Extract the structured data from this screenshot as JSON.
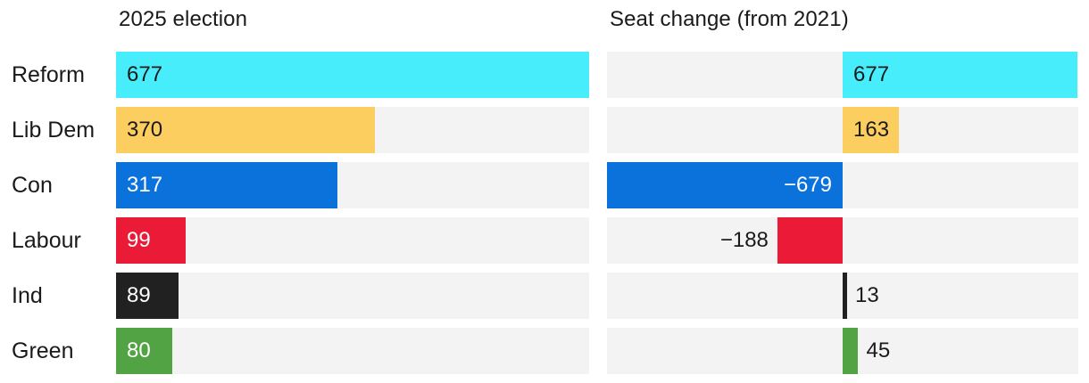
{
  "header": {
    "left_title": "2025 election",
    "right_title": "Seat change (from 2021)"
  },
  "axes": {
    "left_max": 677,
    "right_max": 679
  },
  "track_color": "#F3F3F3",
  "label_color": "#1A1A1A",
  "rows": [
    {
      "party": "Reform",
      "seats": 677,
      "seats_label": "677",
      "change": 677,
      "change_label": "677",
      "color": "#47EDFA",
      "value_text_color": "#1A1A1A",
      "change_label_inside": true
    },
    {
      "party": "Lib Dem",
      "seats": 370,
      "seats_label": "370",
      "change": 163,
      "change_label": "163",
      "color": "#FCCE5F",
      "value_text_color": "#1A1A1A",
      "change_label_inside": true
    },
    {
      "party": "Con",
      "seats": 317,
      "seats_label": "317",
      "change": -679,
      "change_label": "−679",
      "color": "#0B72DB",
      "value_text_color": "#FFFFFF",
      "change_label_inside": true
    },
    {
      "party": "Labour",
      "seats": 99,
      "seats_label": "99",
      "change": -188,
      "change_label": "−188",
      "color": "#EB1B37",
      "value_text_color": "#FFFFFF",
      "change_label_inside": false
    },
    {
      "party": "Ind",
      "seats": 89,
      "seats_label": "89",
      "change": 13,
      "change_label": "13",
      "color": "#212121",
      "value_text_color": "#FFFFFF",
      "change_label_inside": false
    },
    {
      "party": "Green",
      "seats": 80,
      "seats_label": "80",
      "change": 45,
      "change_label": "45",
      "color": "#52A344",
      "value_text_color": "#FFFFFF",
      "change_label_inside": false
    }
  ],
  "chart_data": [
    {
      "type": "bar",
      "orientation": "horizontal",
      "title": "2025 election",
      "categories": [
        "Reform",
        "Lib Dem",
        "Con",
        "Labour",
        "Ind",
        "Green"
      ],
      "values": [
        677,
        370,
        317,
        99,
        89,
        80
      ],
      "data_labels": [
        "677",
        "370",
        "317",
        "99",
        "89",
        "80"
      ],
      "bar_colors": [
        "#47EDFA",
        "#FCCE5F",
        "#0B72DB",
        "#EB1B37",
        "#212121",
        "#52A344"
      ],
      "xlabel": "",
      "ylabel": "",
      "xlim": [
        0,
        677
      ],
      "grid": false,
      "legend_position": "none"
    },
    {
      "type": "bar",
      "orientation": "horizontal",
      "diverging": true,
      "title": "Seat change (from 2021)",
      "categories": [
        "Reform",
        "Lib Dem",
        "Con",
        "Labour",
        "Ind",
        "Green"
      ],
      "values": [
        677,
        163,
        -679,
        -188,
        13,
        45
      ],
      "data_labels": [
        "677",
        "163",
        "−679",
        "−188",
        "13",
        "45"
      ],
      "bar_colors": [
        "#47EDFA",
        "#FCCE5F",
        "#0B72DB",
        "#EB1B37",
        "#212121",
        "#52A344"
      ],
      "xlabel": "",
      "ylabel": "",
      "xlim": [
        -679,
        679
      ],
      "grid": false,
      "legend_position": "none"
    }
  ]
}
